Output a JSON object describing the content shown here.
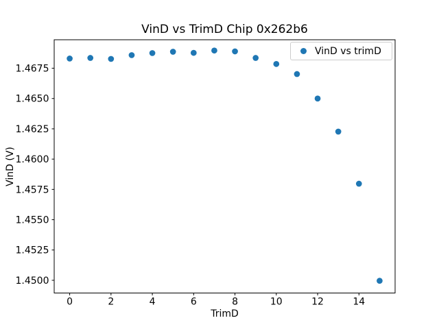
{
  "figure": {
    "background": "#ffffff",
    "text_color": "#000000",
    "frame_color": "#000000"
  },
  "chart_data": {
    "type": "scatter",
    "title": "VinD vs TrimD Chip 0x262b6",
    "xlabel": "TrimD",
    "ylabel": "VinD (V)",
    "legend": {
      "label": "VinD vs trimD",
      "position": "upper right",
      "marker": "dot-icon"
    },
    "marker_color": "#1f77b4",
    "marker_radius_px": 4.35,
    "grid": false,
    "x": [
      0,
      1,
      2,
      3,
      4,
      5,
      6,
      7,
      8,
      9,
      10,
      11,
      12,
      13,
      14,
      15
    ],
    "y": [
      1.4683,
      1.46835,
      1.46827,
      1.46858,
      1.46875,
      1.46886,
      1.46877,
      1.46896,
      1.46889,
      1.46835,
      1.46785,
      1.46702,
      1.465,
      1.46227,
      1.45797,
      1.44996
    ],
    "xlim": [
      -0.75,
      15.75
    ],
    "ylim": [
      1.44895,
      1.46985
    ],
    "xticks": [
      0,
      2,
      4,
      6,
      8,
      10,
      12,
      14
    ],
    "yticks": [
      1.45,
      1.4525,
      1.455,
      1.4575,
      1.46,
      1.4625,
      1.465,
      1.4675
    ],
    "ytick_decimals": 4
  }
}
